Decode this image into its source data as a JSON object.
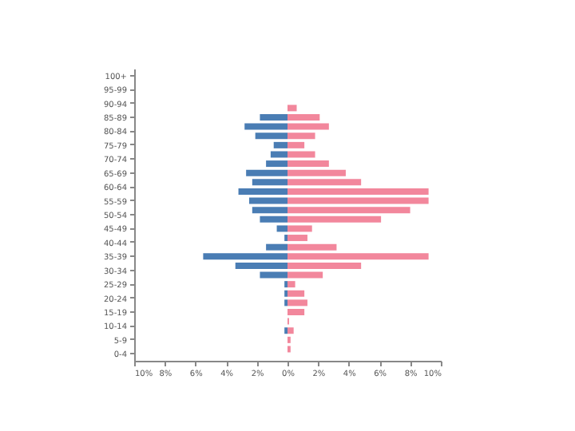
{
  "chart_data": {
    "type": "bar",
    "orientation": "horizontal",
    "stacked": true,
    "categories": [
      "100+",
      null,
      null,
      "95-99",
      null,
      null,
      "90-94",
      null,
      null,
      "85-89",
      null,
      null,
      "80-84",
      null,
      null,
      "75-79",
      null,
      null,
      "70-74",
      null,
      null,
      "65-69",
      null,
      null,
      "60-64",
      null,
      null,
      "55-59",
      null,
      null,
      "50-54",
      null,
      null,
      "45-49",
      null,
      null,
      "40-44",
      null,
      null,
      "35-39",
      null,
      null,
      "30-34",
      null,
      null,
      "25-29",
      null,
      null,
      "20-24",
      null,
      null,
      "15-19",
      null,
      null,
      "10-14",
      null,
      null,
      "5-9",
      null,
      null,
      "0-4"
    ],
    "series": [
      {
        "color": "#4a7db4",
        "values": [
          null,
          null,
          null,
          null,
          null,
          null,
          null,
          null,
          null,
          -1.8,
          null,
          -2.8,
          null,
          -2.1,
          null,
          -0.9,
          null,
          -1.1,
          null,
          -1.4,
          null,
          -2.7,
          null,
          -2.3,
          null,
          -3.2,
          null,
          -2.5,
          null,
          -2.3,
          null,
          -1.8,
          null,
          -0.7,
          null,
          -0.2,
          null,
          -1.4,
          null,
          -5.5,
          null,
          -3.4,
          null,
          -1.8,
          null,
          -0.2,
          null,
          -0.2,
          null,
          -0.2,
          null,
          null,
          null,
          null,
          null,
          -0.2,
          null,
          null,
          null,
          null,
          null
        ]
      },
      {
        "color": "#f2879c",
        "values": [
          null,
          null,
          null,
          null,
          null,
          null,
          null,
          0.6,
          null,
          2.1,
          null,
          2.7,
          null,
          1.8,
          null,
          1.1,
          null,
          1.8,
          null,
          2.7,
          null,
          3.8,
          null,
          4.8,
          null,
          9.2,
          null,
          9.2,
          null,
          8.0,
          null,
          6.1,
          null,
          1.6,
          null,
          1.3,
          null,
          3.2,
          null,
          9.2,
          null,
          4.8,
          null,
          2.3,
          null,
          0.5,
          null,
          1.1,
          null,
          1.3,
          null,
          1.1,
          null,
          0.1,
          null,
          0.4,
          null,
          0.2,
          null,
          0.2,
          null
        ]
      }
    ],
    "xlim": [
      -10,
      10
    ],
    "xticks": [
      {
        "value": -10,
        "label": "10%"
      },
      {
        "value": -8,
        "label": "8%"
      },
      {
        "value": -6,
        "label": "6%"
      },
      {
        "value": -4,
        "label": "4%"
      },
      {
        "value": -2,
        "label": "2%"
      },
      {
        "value": 0,
        "label": "0%"
      },
      {
        "value": 2,
        "label": "2%"
      },
      {
        "value": 4,
        "label": "4%"
      },
      {
        "value": 6,
        "label": "6%"
      },
      {
        "value": 8,
        "label": "8%"
      },
      {
        "value": 10,
        "label": "10%"
      }
    ]
  }
}
